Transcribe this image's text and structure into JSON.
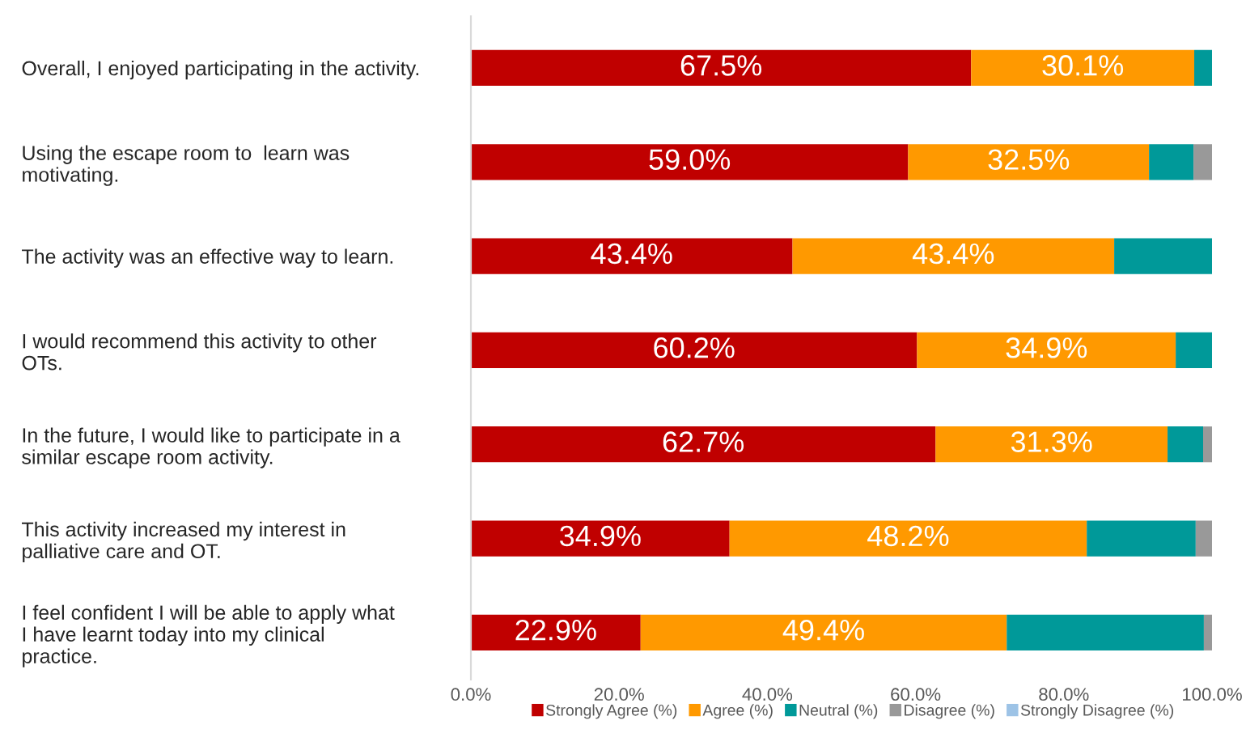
{
  "chart_data": {
    "type": "bar",
    "orientation": "horizontal",
    "stacked": true,
    "categories": [
      "Overall, I enjoyed participating in the activity.",
      "Using the escape room to  learn was\nmotivating.",
      "The activity was an effective way to learn.",
      "I would recommend this activity to other\nOTs.",
      "In the future, I would like to participate in a\nsimilar escape room activity.",
      "This activity increased my interest in\npalliative care and OT.",
      "I feel confident I will be able to apply what\nI have learnt today into my clinical\npractice."
    ],
    "series": [
      {
        "name": "Strongly Agree (%)",
        "color": "#c00000",
        "values": [
          67.5,
          59.0,
          43.4,
          60.2,
          62.7,
          34.9,
          22.9
        ],
        "value_labels": [
          "67.5%",
          "59.0%",
          "43.4%",
          "60.2%",
          "62.7%",
          "34.9%",
          "22.9%"
        ]
      },
      {
        "name": "Agree (%)",
        "color": "#ff9900",
        "values": [
          30.1,
          32.5,
          43.4,
          34.9,
          31.3,
          48.2,
          49.4
        ],
        "value_labels": [
          "30.1%",
          "32.5%",
          "43.4%",
          "34.9%",
          "31.3%",
          "48.2%",
          "49.4%"
        ]
      },
      {
        "name": "Neutral (%)",
        "color": "#009999",
        "values": [
          2.4,
          6.0,
          13.2,
          4.9,
          4.8,
          14.7,
          26.6
        ]
      },
      {
        "name": "Disagree (%)",
        "color": "#999999",
        "values": [
          null,
          2.5,
          null,
          null,
          1.2,
          2.2,
          1.1
        ]
      },
      {
        "name": "Strongly Disagree (%)",
        "color": "#9dc3e6",
        "values": [
          null,
          null,
          null,
          null,
          null,
          null,
          null
        ]
      }
    ],
    "xlim": [
      0,
      100
    ],
    "xticks": [
      {
        "value": 0,
        "label": "0.0%"
      },
      {
        "value": 20,
        "label": "20.0%"
      },
      {
        "value": 40,
        "label": "40.0%"
      },
      {
        "value": 60,
        "label": "60.0%"
      },
      {
        "value": 80,
        "label": "80.0%"
      },
      {
        "value": 100,
        "label": "100.0%"
      }
    ],
    "grid": false,
    "legend": "bottom"
  }
}
